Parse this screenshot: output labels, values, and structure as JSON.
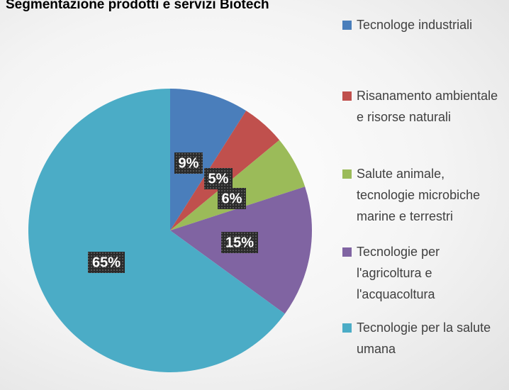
{
  "chart_data": {
    "type": "pie",
    "title": "Segmentazione prodotti e servizi Biotech",
    "categories": [
      "Tecnologe industriali",
      "Risanamento ambientale e risorse naturali",
      "Salute animale, tecnologie microbiche marine e terrestri",
      "Tecnologie per l'agricoltura e l'acquacoltura",
      "Tecnologie per la salute umana"
    ],
    "values": [
      9,
      5,
      6,
      15,
      65
    ],
    "value_labels": [
      "9%",
      "5%",
      "6%",
      "15%",
      "65%"
    ],
    "colors": [
      "#4a7ebb",
      "#c0504d",
      "#9bbb59",
      "#8064a2",
      "#4bacc6"
    ]
  }
}
